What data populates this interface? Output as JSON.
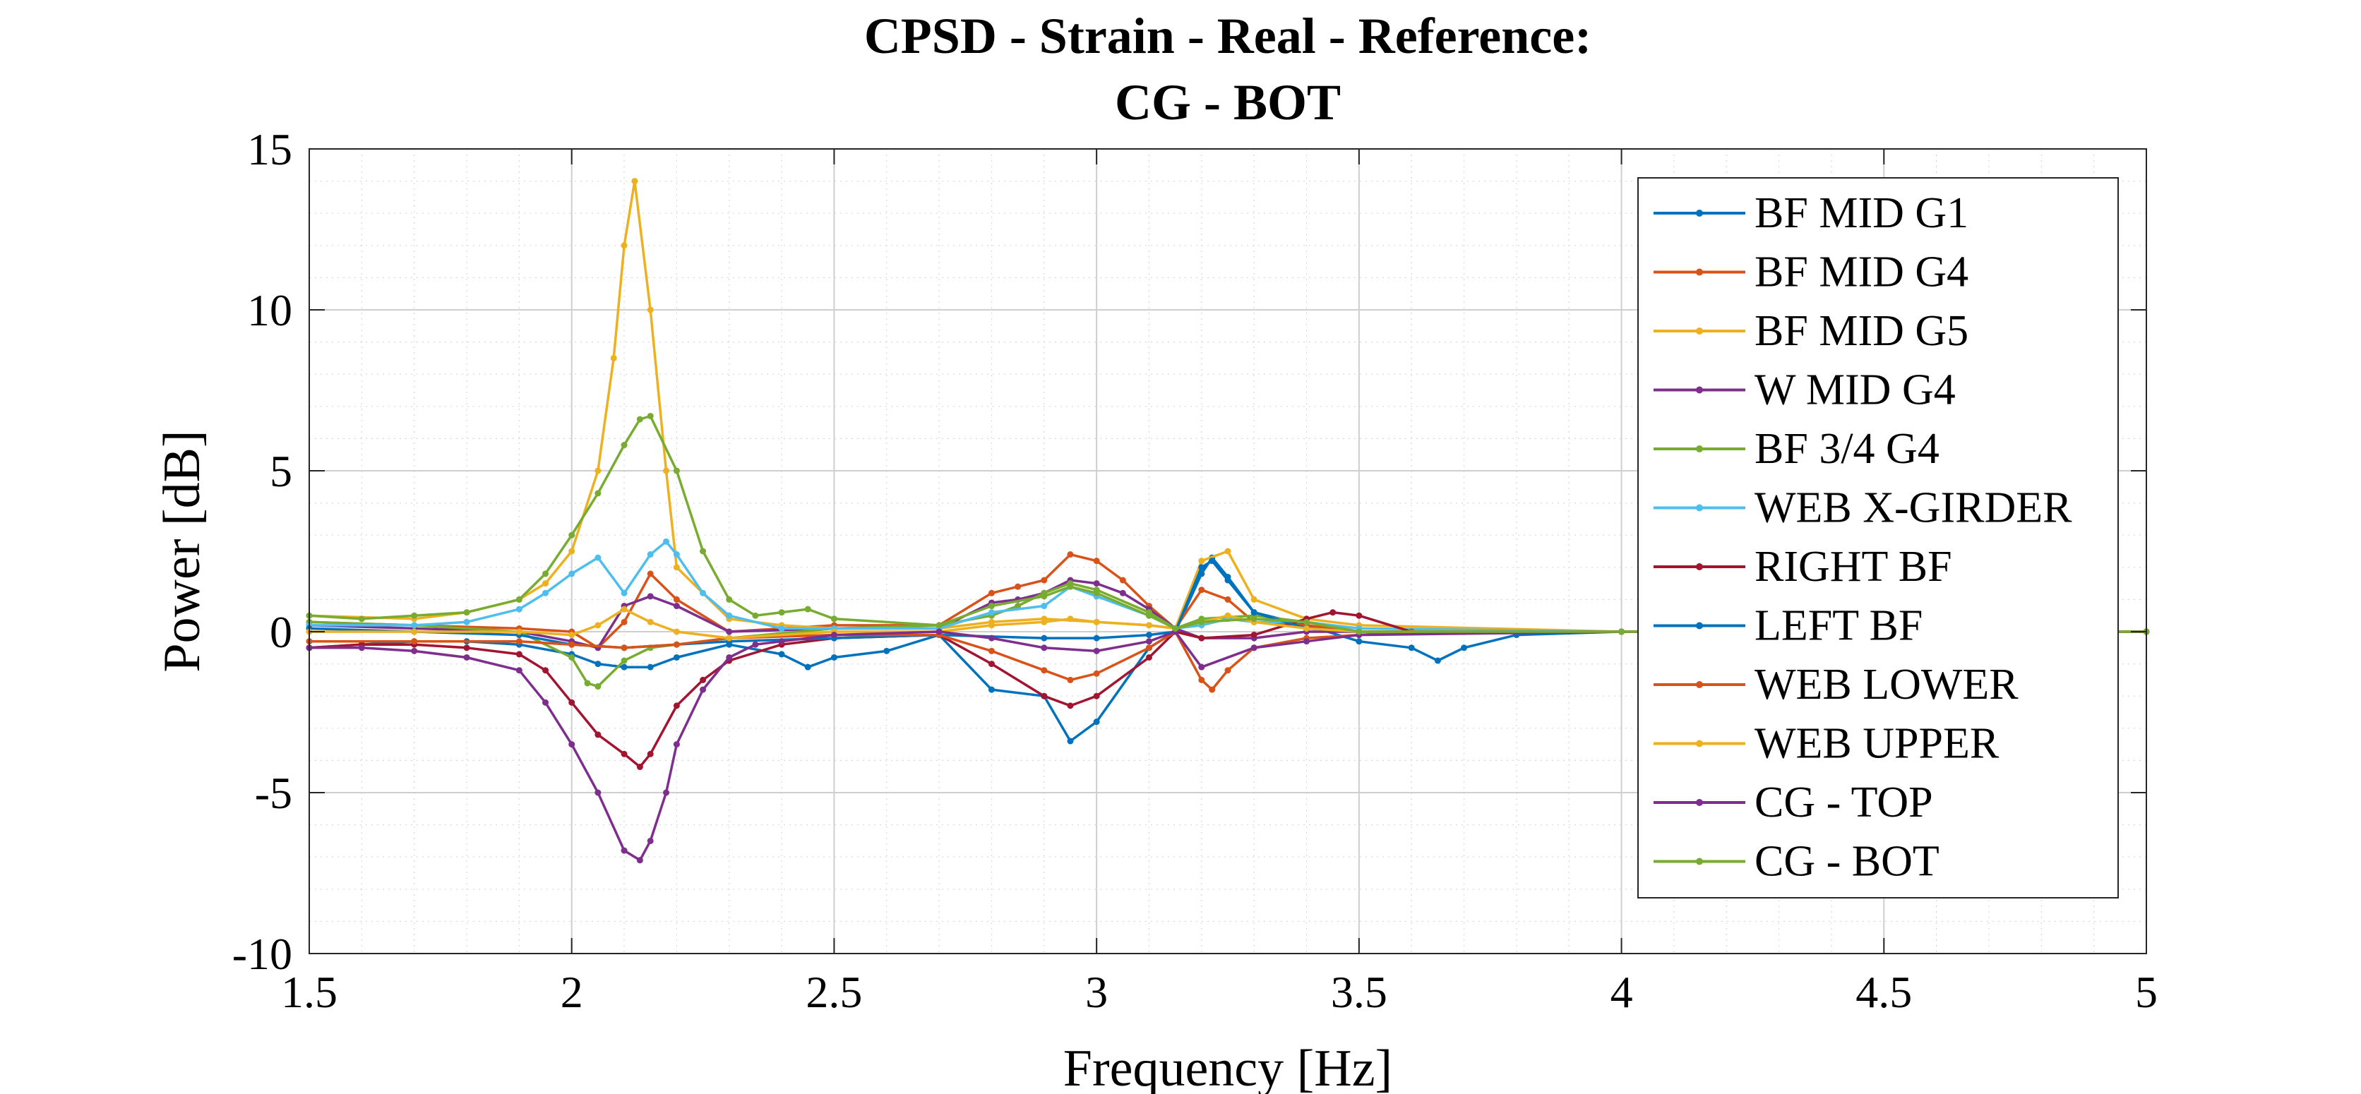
{
  "chart_data": {
    "type": "line",
    "title": "CPSD - Strain - Real - Reference:",
    "subtitle": "CG - BOT",
    "xlabel": "Frequency [Hz]",
    "ylabel": "Power [dB]",
    "xlim": [
      1.5,
      5
    ],
    "ylim": [
      -10,
      15
    ],
    "xticks": [
      1.5,
      2,
      2.5,
      3,
      3.5,
      4,
      4.5,
      5
    ],
    "xtick_labels": [
      "1.5",
      "2",
      "2.5",
      "3",
      "3.5",
      "4",
      "4.5",
      "5"
    ],
    "yticks": [
      -10,
      -5,
      0,
      5,
      10,
      15
    ],
    "ytick_labels": [
      "-10",
      "-5",
      "0",
      "5",
      "10",
      "15"
    ],
    "grid": true,
    "minor_grid": true,
    "legend_position": "top-right",
    "series": [
      {
        "name": "BF MID G1",
        "color": "#0072BD",
        "x": [
          1.5,
          1.6,
          1.7,
          1.8,
          1.9,
          2.0,
          2.05,
          2.1,
          2.15,
          2.2,
          2.3,
          2.4,
          2.45,
          2.5,
          2.6,
          2.7,
          2.8,
          2.9,
          2.95,
          3.0,
          3.1,
          3.15,
          3.2,
          3.22,
          3.25,
          3.3,
          3.4,
          3.5,
          3.6,
          3.65,
          3.7,
          3.8,
          4.0,
          5.0
        ],
        "y": [
          -0.5,
          -0.4,
          -0.3,
          -0.3,
          -0.4,
          -0.7,
          -1.0,
          -1.1,
          -1.1,
          -0.8,
          -0.4,
          -0.7,
          -1.1,
          -0.8,
          -0.6,
          -0.1,
          -1.8,
          -2.0,
          -3.4,
          -2.8,
          -0.5,
          0.0,
          1.8,
          2.3,
          1.7,
          0.6,
          0.2,
          -0.3,
          -0.5,
          -0.9,
          -0.5,
          -0.1,
          0.0,
          0.0
        ]
      },
      {
        "name": "BF MID G4",
        "color": "#D95319",
        "x": [
          1.5,
          1.7,
          1.9,
          2.0,
          2.05,
          2.1,
          2.15,
          2.2,
          2.3,
          2.5,
          2.7,
          2.8,
          2.85,
          2.9,
          2.95,
          3.0,
          3.05,
          3.1,
          3.15,
          3.2,
          3.25,
          3.3,
          3.4,
          3.5,
          3.7,
          4.0,
          5.0
        ],
        "y": [
          0.3,
          0.2,
          0.1,
          0.0,
          -0.5,
          0.3,
          1.8,
          1.0,
          0.0,
          0.2,
          0.2,
          1.2,
          1.4,
          1.6,
          2.4,
          2.2,
          1.6,
          0.8,
          0.1,
          1.3,
          1.0,
          0.3,
          0.2,
          0.0,
          0.0,
          0.0,
          0.0
        ]
      },
      {
        "name": "BF MID G5",
        "color": "#EDB120",
        "x": [
          1.5,
          1.7,
          1.8,
          1.9,
          1.95,
          2.0,
          2.05,
          2.08,
          2.1,
          2.12,
          2.15,
          2.18,
          2.2,
          2.3,
          2.4,
          2.5,
          2.7,
          2.8,
          2.9,
          3.0,
          3.1,
          3.15,
          3.2,
          3.25,
          3.3,
          3.4,
          3.5,
          4.0,
          5.0
        ],
        "y": [
          0.5,
          0.4,
          0.6,
          1.0,
          1.5,
          2.5,
          5.0,
          8.5,
          12.0,
          14.0,
          10.0,
          5.0,
          2.0,
          0.4,
          0.2,
          0.1,
          0.1,
          0.3,
          0.4,
          0.3,
          0.2,
          0.1,
          2.2,
          2.5,
          1.0,
          0.4,
          0.2,
          0.0,
          0.0
        ]
      },
      {
        "name": "W MID G4",
        "color": "#7E2F8E",
        "x": [
          1.5,
          1.7,
          1.9,
          2.0,
          2.05,
          2.1,
          2.15,
          2.2,
          2.3,
          2.5,
          2.7,
          2.8,
          2.85,
          2.9,
          2.95,
          3.0,
          3.05,
          3.1,
          3.15,
          3.2,
          3.3,
          3.4,
          3.5,
          4.0,
          5.0
        ],
        "y": [
          0.2,
          0.1,
          0.0,
          -0.3,
          -0.5,
          0.8,
          1.1,
          0.8,
          0.0,
          0.1,
          0.1,
          0.9,
          1.0,
          1.2,
          1.6,
          1.5,
          1.2,
          0.7,
          0.1,
          -0.2,
          -0.2,
          0.0,
          0.0,
          0.0,
          0.0
        ]
      },
      {
        "name": "BF 3/4 G4",
        "color": "#77AC30",
        "x": [
          1.5,
          1.7,
          1.9,
          2.0,
          2.03,
          2.05,
          2.1,
          2.15,
          2.2,
          2.3,
          2.5,
          2.7,
          2.8,
          2.85,
          2.9,
          2.95,
          3.0,
          3.1,
          3.15,
          3.2,
          3.3,
          3.4,
          3.5,
          4.0,
          5.0
        ],
        "y": [
          0.3,
          0.2,
          0.0,
          -0.8,
          -1.6,
          -1.7,
          -0.9,
          -0.5,
          -0.4,
          -0.2,
          0.1,
          0.2,
          0.5,
          0.8,
          1.2,
          1.5,
          1.3,
          0.6,
          0.1,
          0.4,
          0.5,
          0.3,
          0.0,
          0.0,
          0.0
        ]
      },
      {
        "name": "WEB X-GIRDER",
        "color": "#4DBEEE",
        "x": [
          1.5,
          1.7,
          1.8,
          1.9,
          1.95,
          2.0,
          2.05,
          2.1,
          2.15,
          2.18,
          2.2,
          2.25,
          2.3,
          2.4,
          2.5,
          2.7,
          2.8,
          2.9,
          2.95,
          3.0,
          3.1,
          3.15,
          3.2,
          3.25,
          3.3,
          3.4,
          3.5,
          4.0,
          5.0
        ],
        "y": [
          0.2,
          0.2,
          0.3,
          0.7,
          1.2,
          1.8,
          2.3,
          1.2,
          2.4,
          2.8,
          2.4,
          1.2,
          0.5,
          0.1,
          0.1,
          0.1,
          0.6,
          0.8,
          1.4,
          1.1,
          0.5,
          0.1,
          0.2,
          0.4,
          0.3,
          0.3,
          0.1,
          0.0,
          0.0
        ]
      },
      {
        "name": "RIGHT BF",
        "color": "#A2142F",
        "x": [
          1.5,
          1.6,
          1.7,
          1.8,
          1.9,
          1.95,
          2.0,
          2.05,
          2.1,
          2.13,
          2.15,
          2.2,
          2.25,
          2.3,
          2.4,
          2.5,
          2.7,
          2.8,
          2.9,
          2.95,
          3.0,
          3.1,
          3.15,
          3.2,
          3.3,
          3.4,
          3.45,
          3.5,
          3.6,
          4.0,
          5.0
        ],
        "y": [
          -0.5,
          -0.4,
          -0.4,
          -0.5,
          -0.7,
          -1.2,
          -2.2,
          -3.2,
          -3.8,
          -4.2,
          -3.8,
          -2.3,
          -1.5,
          -0.9,
          -0.4,
          -0.2,
          -0.1,
          -1.0,
          -2.0,
          -2.3,
          -2.0,
          -0.8,
          0.0,
          -0.2,
          -0.1,
          0.4,
          0.6,
          0.5,
          0.0,
          0.0,
          0.0
        ]
      },
      {
        "name": "LEFT BF",
        "color": "#0072BD",
        "x": [
          1.5,
          1.7,
          1.9,
          2.0,
          2.1,
          2.3,
          2.5,
          2.7,
          2.9,
          3.0,
          3.1,
          3.15,
          3.2,
          3.22,
          3.25,
          3.3,
          3.4,
          3.5,
          4.0,
          5.0
        ],
        "y": [
          0.1,
          0.0,
          -0.1,
          -0.4,
          -0.5,
          -0.3,
          -0.2,
          -0.1,
          -0.2,
          -0.2,
          -0.1,
          0.0,
          2.0,
          2.2,
          1.6,
          0.6,
          0.1,
          0.0,
          0.0,
          0.0
        ]
      },
      {
        "name": "WEB LOWER",
        "color": "#D95319",
        "x": [
          1.5,
          1.7,
          1.9,
          2.0,
          2.1,
          2.2,
          2.3,
          2.5,
          2.7,
          2.8,
          2.9,
          2.95,
          3.0,
          3.1,
          3.15,
          3.2,
          3.22,
          3.25,
          3.3,
          3.4,
          3.5,
          3.6,
          4.0,
          5.0
        ],
        "y": [
          -0.3,
          -0.3,
          -0.3,
          -0.4,
          -0.5,
          -0.4,
          -0.2,
          -0.1,
          -0.1,
          -0.6,
          -1.2,
          -1.5,
          -1.3,
          -0.5,
          0.0,
          -1.5,
          -1.8,
          -1.2,
          -0.5,
          -0.2,
          -0.1,
          0.0,
          0.0,
          0.0
        ]
      },
      {
        "name": "WEB UPPER",
        "color": "#EDB120",
        "x": [
          1.5,
          1.7,
          1.9,
          2.0,
          2.05,
          2.1,
          2.15,
          2.2,
          2.3,
          2.5,
          2.7,
          2.8,
          2.9,
          2.95,
          3.0,
          3.1,
          3.15,
          3.2,
          3.25,
          3.3,
          3.4,
          3.5,
          4.0,
          5.0
        ],
        "y": [
          0.0,
          0.0,
          0.0,
          -0.1,
          0.2,
          0.7,
          0.3,
          0.0,
          -0.2,
          0.0,
          0.0,
          0.2,
          0.3,
          0.4,
          0.3,
          0.2,
          0.1,
          0.3,
          0.5,
          0.3,
          0.1,
          0.0,
          0.0,
          0.0
        ]
      },
      {
        "name": "CG - TOP",
        "color": "#7E2F8E",
        "x": [
          1.5,
          1.6,
          1.7,
          1.8,
          1.9,
          1.95,
          2.0,
          2.05,
          2.1,
          2.13,
          2.15,
          2.18,
          2.2,
          2.25,
          2.3,
          2.35,
          2.4,
          2.5,
          2.7,
          2.8,
          2.9,
          3.0,
          3.1,
          3.15,
          3.2,
          3.3,
          3.4,
          3.5,
          4.0,
          5.0
        ],
        "y": [
          -0.5,
          -0.5,
          -0.6,
          -0.8,
          -1.2,
          -2.2,
          -3.5,
          -5.0,
          -6.8,
          -7.1,
          -6.5,
          -5.0,
          -3.5,
          -1.8,
          -0.8,
          -0.4,
          -0.3,
          -0.1,
          0.0,
          -0.2,
          -0.5,
          -0.6,
          -0.3,
          0.0,
          -1.1,
          -0.5,
          -0.3,
          -0.1,
          0.0,
          0.0
        ]
      },
      {
        "name": "CG - BOT",
        "color": "#77AC30",
        "x": [
          1.5,
          1.6,
          1.7,
          1.8,
          1.9,
          1.95,
          2.0,
          2.05,
          2.1,
          2.13,
          2.15,
          2.2,
          2.25,
          2.3,
          2.35,
          2.4,
          2.45,
          2.5,
          2.7,
          2.8,
          2.9,
          2.95,
          3.0,
          3.1,
          3.15,
          3.2,
          3.3,
          3.4,
          3.5,
          4.0,
          5.0
        ],
        "y": [
          0.5,
          0.4,
          0.5,
          0.6,
          1.0,
          1.8,
          3.0,
          4.3,
          5.8,
          6.6,
          6.7,
          5.0,
          2.5,
          1.0,
          0.5,
          0.6,
          0.7,
          0.4,
          0.2,
          0.8,
          1.1,
          1.4,
          1.2,
          0.5,
          0.1,
          0.3,
          0.4,
          0.3,
          0.0,
          0.0,
          0.0
        ]
      }
    ]
  }
}
